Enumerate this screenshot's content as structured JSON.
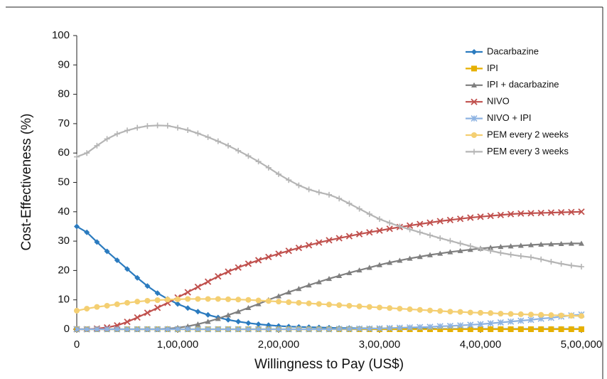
{
  "chart_data": {
    "type": "line",
    "y_label": "Cost-Effectiveness (%)",
    "x_label": "Willingness to Pay (US$)",
    "x": [
      0,
      10000,
      20000,
      30000,
      40000,
      50000,
      60000,
      70000,
      80000,
      90000,
      100000,
      110000,
      120000,
      130000,
      140000,
      150000,
      160000,
      170000,
      180000,
      190000,
      200000,
      210000,
      220000,
      230000,
      240000,
      250000,
      260000,
      270000,
      280000,
      290000,
      300000,
      310000,
      320000,
      330000,
      340000,
      350000,
      360000,
      370000,
      380000,
      390000,
      400000,
      410000,
      420000,
      430000,
      440000,
      450000,
      460000,
      470000,
      480000,
      490000,
      500000
    ],
    "xlim": [
      0,
      500000
    ],
    "xticks": [
      0,
      {
        "value": 100000,
        "label": "1,00,000"
      },
      {
        "value": 200000,
        "label": "2,00,000"
      },
      {
        "value": 300000,
        "label": "3,00,000"
      },
      {
        "value": 400000,
        "label": "4,00,000"
      },
      {
        "value": 500000,
        "label": "5,00,000"
      }
    ],
    "ylim": [
      0,
      100
    ],
    "yticks": [
      0,
      10,
      20,
      30,
      40,
      50,
      60,
      70,
      80,
      90,
      100
    ],
    "series": [
      {
        "name": "Dacarbazine",
        "color": "#2b7bbf",
        "marker": "diamond",
        "values": [
          35,
          33,
          29.7,
          26.5,
          23.5,
          20.5,
          17.5,
          14.7,
          12.3,
          10.3,
          8.6,
          7.2,
          6,
          4.9,
          4,
          3.2,
          2.6,
          2.1,
          1.7,
          1.4,
          1.1,
          0.9,
          0.8,
          0.7,
          0.6,
          0.5,
          0.4,
          0.4,
          0.3,
          0.3,
          0.2,
          0.2,
          0.2,
          0.2,
          0.2,
          0.2,
          0.1,
          0.1,
          0.1,
          0.1,
          0.1,
          0.1,
          0.1,
          0.1,
          0.1,
          0.1,
          0.1,
          0.1,
          0.1,
          0.1,
          0.1
        ]
      },
      {
        "name": "IPI",
        "color": "#e6b000",
        "marker": "square",
        "values": [
          0,
          0,
          0,
          0,
          0,
          0,
          0,
          0,
          0,
          0,
          0,
          0,
          0,
          0,
          0,
          0,
          0,
          0,
          0,
          0,
          0,
          0,
          0,
          0,
          0,
          0,
          0,
          0,
          0,
          0,
          0,
          0,
          0,
          0,
          0,
          0,
          0,
          0,
          0,
          0,
          0,
          0,
          0,
          0,
          0,
          0,
          0,
          0,
          0,
          0,
          0
        ]
      },
      {
        "name": "IPI + dacarbazine",
        "color": "#7f7f7f",
        "marker": "triangle",
        "values": [
          0,
          0,
          0,
          0,
          0,
          0,
          0,
          0,
          0,
          0.2,
          0.5,
          1,
          1.7,
          2.6,
          3.6,
          4.8,
          6,
          7.3,
          8.6,
          10,
          11.3,
          12.6,
          13.8,
          15,
          16.1,
          17.2,
          18.2,
          19.2,
          20.1,
          21,
          21.9,
          22.7,
          23.4,
          24.1,
          24.7,
          25.3,
          25.8,
          26.3,
          26.7,
          27.1,
          27.5,
          27.8,
          28.1,
          28.3,
          28.5,
          28.7,
          28.9,
          29,
          29.1,
          29.2,
          29.2
        ]
      },
      {
        "name": "NIVO",
        "color": "#c0504d",
        "marker": "x",
        "values": [
          0,
          0,
          0.2,
          0.6,
          1.3,
          2.5,
          4,
          5.6,
          7.3,
          9,
          10.8,
          12.6,
          14.4,
          16.2,
          18,
          19.6,
          21,
          22.3,
          23.5,
          24.6,
          25.7,
          26.7,
          27.7,
          28.6,
          29.5,
          30.3,
          31,
          31.7,
          32.4,
          33,
          33.6,
          34.2,
          34.8,
          35.3,
          35.8,
          36.3,
          36.8,
          37.2,
          37.6,
          38,
          38.3,
          38.6,
          38.9,
          39.2,
          39.4,
          39.5,
          39.6,
          39.7,
          39.8,
          39.9,
          40
        ]
      },
      {
        "name": "NIVO + IPI",
        "color": "#8db3e2",
        "marker": "star",
        "values": [
          0,
          0,
          0,
          0,
          0,
          0,
          0,
          0,
          0,
          0,
          0,
          0,
          0,
          0,
          0,
          0,
          0,
          0,
          0,
          0,
          0,
          0,
          0,
          0,
          0,
          0,
          0.1,
          0.1,
          0.2,
          0.2,
          0.3,
          0.4,
          0.5,
          0.6,
          0.7,
          0.8,
          1,
          1.1,
          1.3,
          1.5,
          1.7,
          2,
          2.3,
          2.6,
          2.9,
          3.2,
          3.6,
          3.9,
          4.3,
          4.7,
          5
        ]
      },
      {
        "name": "PEM every 2 weeks",
        "color": "#f4cf72",
        "marker": "circle",
        "values": [
          6.3,
          7,
          7.6,
          8,
          8.5,
          9,
          9.4,
          9.7,
          9.9,
          10.1,
          10.2,
          10.3,
          10.3,
          10.3,
          10.3,
          10.2,
          10.1,
          10,
          9.8,
          9.6,
          9.4,
          9.2,
          9,
          8.8,
          8.6,
          8.4,
          8.2,
          8,
          7.8,
          7.6,
          7.4,
          7.2,
          7,
          6.8,
          6.6,
          6.4,
          6.2,
          6,
          5.9,
          5.7,
          5.6,
          5.5,
          5.3,
          5.2,
          5.1,
          5,
          4.9,
          4.8,
          4.7,
          4.6,
          4.5
        ]
      },
      {
        "name": "PEM every 3 weeks",
        "color": "#b5b5b5",
        "marker": "plus",
        "values": [
          58.7,
          60,
          62.5,
          64.8,
          66.5,
          67.7,
          68.6,
          69.2,
          69.4,
          69.3,
          68.6,
          67.8,
          66.7,
          65.4,
          64,
          62.5,
          60.8,
          59,
          57.1,
          55,
          52.8,
          50.8,
          49,
          47.6,
          46.6,
          45.8,
          44.5,
          42.8,
          41,
          39.2,
          37.5,
          36.2,
          35,
          34,
          33,
          32,
          31,
          30.1,
          29.2,
          28.3,
          27.4,
          26.7,
          26,
          25.4,
          24.9,
          24.5,
          23.8,
          23,
          22.3,
          21.7,
          21.3
        ]
      }
    ]
  }
}
